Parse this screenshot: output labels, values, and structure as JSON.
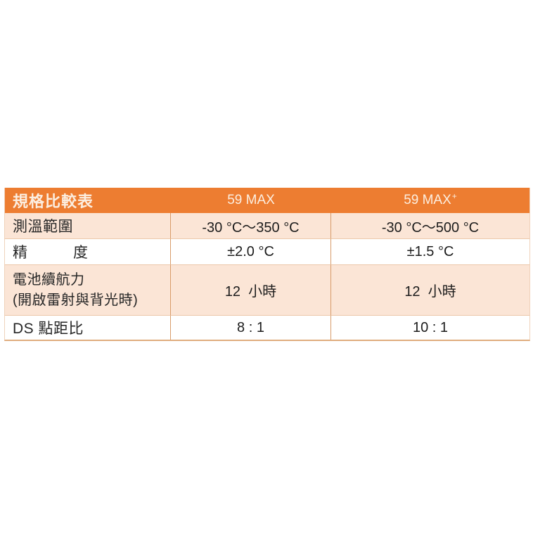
{
  "colors": {
    "page_bg": "#FFFFFF",
    "header_bg": "#ED7D31",
    "header_text": "#FCEEE0",
    "band_row_bg": "#FBE5D6",
    "white_row_bg": "#FFFFFF",
    "vertical_border": "#D89B69",
    "horizontal_border": "#ECC8AA",
    "body_text": "#262626"
  },
  "table": {
    "header": {
      "title": "規格比較表",
      "product1": "59 MAX",
      "product2_base": "59 MAX",
      "product2_sup": "+"
    },
    "rows": [
      {
        "label": "測溫範圍",
        "product1": "-30 °C～350 °C",
        "product2": "-30 °C～500 °C"
      },
      {
        "label": "精　　　度",
        "product1": "±2.0 °C",
        "product2": "±1.5 °C"
      },
      {
        "label": "電池續航力",
        "label_line2": "(開啟雷射與背光時)",
        "product1": "12  小時",
        "product2": "12  小時"
      },
      {
        "label": "DS 點距比",
        "product1": "8 : 1",
        "product2": "10 : 1"
      }
    ]
  }
}
